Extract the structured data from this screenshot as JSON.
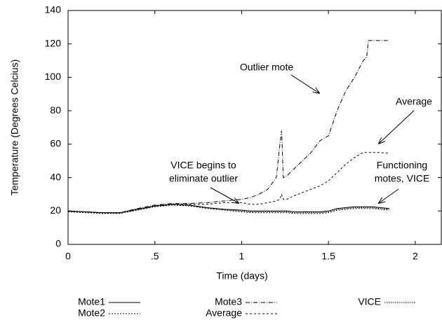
{
  "chart_data": {
    "type": "line",
    "x_label": "Time (days)",
    "y_label": "Temperature (Degrees Celcius)",
    "x": [
      0,
      0.1,
      0.2,
      0.3,
      0.4,
      0.5,
      0.6,
      0.7,
      0.8,
      0.9,
      1.0,
      1.05,
      1.1,
      1.15,
      1.2,
      1.22,
      1.23,
      1.24,
      1.26,
      1.3,
      1.35,
      1.4,
      1.45,
      1.5,
      1.55,
      1.6,
      1.65,
      1.7,
      1.72,
      1.73,
      1.75,
      1.8,
      1.85
    ],
    "series": [
      {
        "name": "Mote1",
        "color": "#000000",
        "dash": "none",
        "values": [
          20,
          19.5,
          19,
          19,
          21,
          23,
          24,
          23.5,
          22,
          21,
          20.5,
          20,
          20,
          20,
          20,
          20,
          20,
          20,
          20,
          19.5,
          19.5,
          19.5,
          19.5,
          20,
          21.5,
          22,
          22.5,
          22.5,
          22.5,
          22.5,
          22.5,
          22,
          21.5
        ]
      },
      {
        "name": "Mote2",
        "color": "#000000",
        "dash": "2,2",
        "values": [
          19.5,
          19,
          18.5,
          18.5,
          20.5,
          22.5,
          23.5,
          23,
          21.5,
          20.5,
          19.5,
          19,
          19,
          19,
          19,
          19,
          19,
          19,
          19,
          18.5,
          18.5,
          18.5,
          18.5,
          19,
          20.5,
          21,
          21.5,
          21.5,
          21.5,
          21.5,
          21.5,
          21,
          20.5
        ]
      },
      {
        "name": "Mote3",
        "color": "#000000",
        "dash": "6,2,1,2",
        "values": [
          20,
          19.5,
          19,
          19,
          21.5,
          23.5,
          24.5,
          24.5,
          25,
          26,
          27,
          28,
          30,
          33,
          40,
          60,
          68,
          40,
          41,
          45,
          50,
          55,
          62,
          65,
          80,
          92,
          100,
          110,
          112,
          122,
          122,
          122,
          122
        ]
      },
      {
        "name": "Average",
        "color": "#000000",
        "dash": "3,3",
        "values": [
          20,
          19.5,
          19,
          19,
          21,
          23,
          24,
          24,
          24,
          25,
          25,
          24,
          24,
          25,
          26,
          27,
          30,
          27,
          27,
          29,
          31,
          33,
          35,
          38,
          43,
          48,
          52,
          55,
          55,
          55,
          55,
          55,
          54.5
        ]
      },
      {
        "name": "VICE",
        "color": "#000000",
        "dash": "1.5,1.5",
        "values": [
          19.8,
          19.3,
          18.8,
          18.8,
          20.8,
          22.8,
          23.8,
          23.3,
          21.8,
          20.8,
          20,
          19.5,
          19.5,
          19.5,
          19.5,
          19.5,
          19.5,
          19.5,
          19.5,
          19,
          19,
          19,
          19,
          19.5,
          21,
          21.5,
          22,
          22,
          22,
          22,
          22,
          21.5,
          21
        ]
      }
    ],
    "xlim": [
      0,
      2.15
    ],
    "ylim": [
      0,
      140
    ],
    "xticks": [
      0,
      {
        "value": 0.5,
        "label": ".5"
      },
      1,
      1.5,
      2
    ],
    "yticks": [
      0,
      20,
      40,
      60,
      80,
      100,
      120,
      140
    ],
    "annotations": [
      {
        "lines": [
          "Outlier mote"
        ]
      },
      {
        "lines": [
          "Average"
        ]
      },
      {
        "lines": [
          "VICE begins to",
          "eliminate outlier"
        ]
      },
      {
        "lines": [
          "Functioning",
          "motes, VICE"
        ]
      }
    ]
  }
}
